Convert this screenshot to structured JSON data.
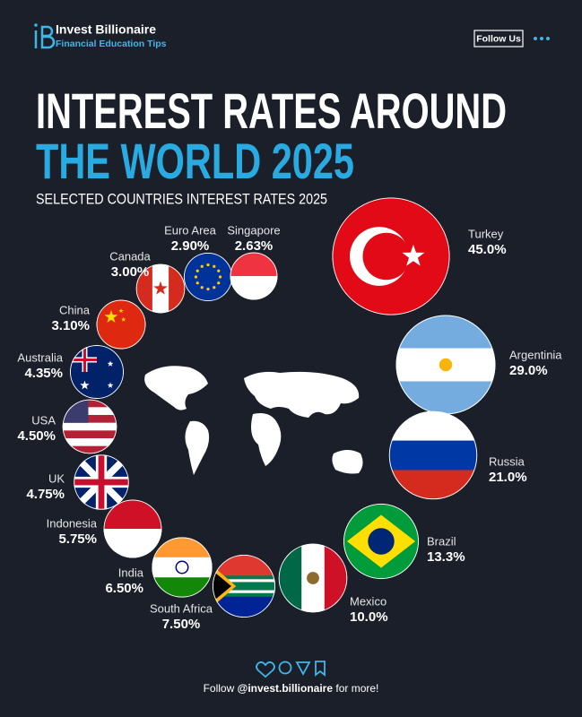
{
  "header": {
    "brand": "Invest Billionaire",
    "tagline": "Financial Education Tips",
    "button": "Follow Us"
  },
  "chart_data": {
    "type": "bubble",
    "title": "INTEREST RATES AROUND",
    "title_highlight": "THE WORLD 2025",
    "subtitle": "SELECTED COUNTRIES INTEREST RATES 2025",
    "categories": [
      "Turkey",
      "Argentinia",
      "Russia",
      "Brazil",
      "Mexico",
      "South Africa",
      "India",
      "Indonesia",
      "UK",
      "USA",
      "Australia",
      "China",
      "Canada",
      "Euro Area",
      "Singapore"
    ],
    "values": [
      45.0,
      29.0,
      21.0,
      13.3,
      10.0,
      7.5,
      6.5,
      5.75,
      4.75,
      4.5,
      4.35,
      3.1,
      3.0,
      2.9,
      2.63
    ],
    "value_labels": [
      "45.0%",
      "29.0%",
      "21.0%",
      "13.3%",
      "10.0%",
      "7.50%",
      "6.50%",
      "5.75%",
      "4.75%",
      "4.50%",
      "4.35%",
      "3.10%",
      "3.00%",
      "2.90%",
      "2.63%"
    ]
  },
  "footer": {
    "prefix": "Follow",
    "handle": "@invest.billionaire",
    "suffix": "for more!"
  }
}
